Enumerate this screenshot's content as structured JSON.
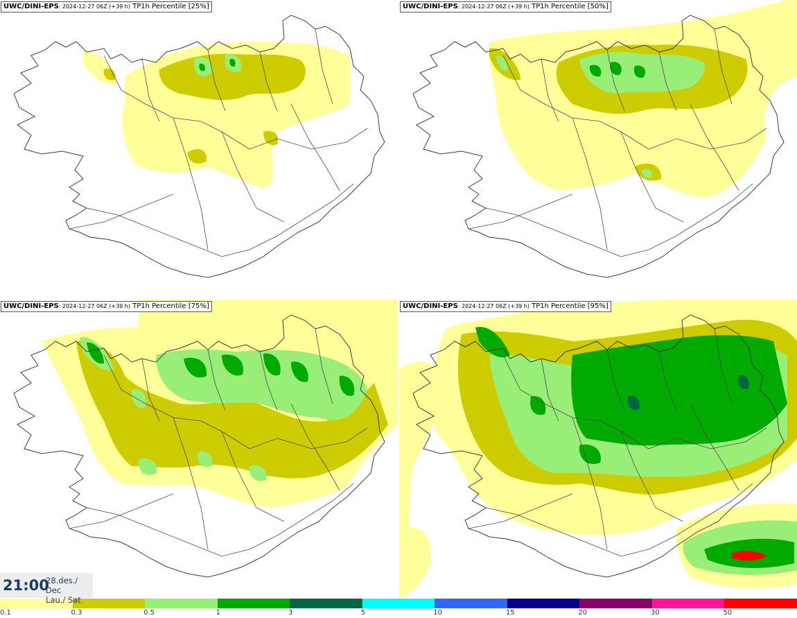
{
  "panels": [
    {
      "model": "UWC/DINI-EPS",
      "run": ": 2024-12-27 06Z (+39 h)",
      "product": " TP1h Percentile [25%]"
    },
    {
      "model": "UWC/DINI-EPS",
      "run": ": 2024-12-27 06Z (+39 h)",
      "product": " TP1h Percentile [50%]"
    },
    {
      "model": "UWC/DINI-EPS",
      "run": ": 2024-12-27 06Z (+39 h)",
      "product": " TP1h Percentile [75%]"
    },
    {
      "model": "UWC/DINI-EPS",
      "run": ": 2024-12-27 06Z (+39 h)",
      "product": " TP1h Percentile [95%]"
    }
  ],
  "valid_time": {
    "time": "21:00",
    "date_line1": "28.des./ Dec",
    "date_line2": "Lau./ Sat"
  },
  "legend": {
    "colors": [
      "#ffff99",
      "#cccc00",
      "#99ee77",
      "#00aa00",
      "#006644",
      "#00ffff",
      "#3366ff",
      "#000088",
      "#880066",
      "#ff1493",
      "#ff0000"
    ],
    "labels": [
      "0.1",
      "0.3",
      "0.5",
      "1",
      "3",
      "5",
      "10",
      "15",
      "20",
      "30",
      "50"
    ]
  },
  "map_colors": {
    "land_outline": "#3a3a3a",
    "yellow": "#ffff99",
    "olive": "#cccc00",
    "lightgreen": "#99ee77",
    "green": "#00aa00",
    "darkgreen": "#006644",
    "red": "#ff0000"
  }
}
